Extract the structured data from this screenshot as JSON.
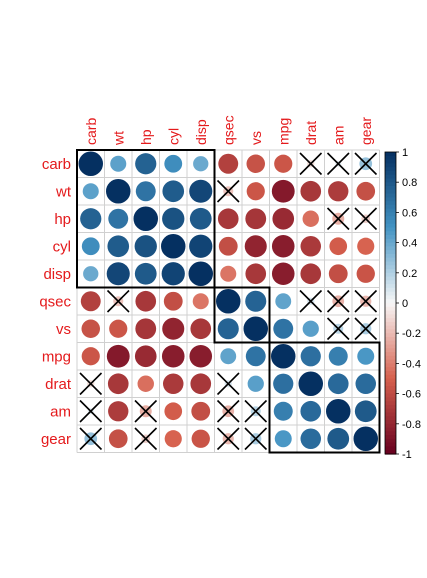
{
  "chart_data": {
    "type": "heatmap",
    "variables": [
      "carb",
      "wt",
      "hp",
      "cyl",
      "disp",
      "qsec",
      "vs",
      "mpg",
      "drat",
      "am",
      "gear"
    ],
    "matrix": [
      [
        1.0,
        0.43,
        0.75,
        0.53,
        0.39,
        -0.66,
        -0.57,
        -0.55,
        -0.09,
        0.06,
        0.27
      ],
      [
        0.43,
        1.0,
        0.66,
        0.78,
        0.89,
        -0.17,
        -0.55,
        -0.87,
        -0.71,
        -0.69,
        -0.58
      ],
      [
        0.75,
        0.66,
        1.0,
        0.83,
        0.79,
        -0.71,
        -0.72,
        -0.78,
        -0.45,
        -0.24,
        -0.13
      ],
      [
        0.53,
        0.78,
        0.83,
        1.0,
        0.9,
        -0.59,
        -0.81,
        -0.85,
        -0.7,
        -0.52,
        -0.49
      ],
      [
        0.39,
        0.89,
        0.79,
        0.9,
        1.0,
        -0.43,
        -0.71,
        -0.85,
        -0.71,
        -0.59,
        -0.56
      ],
      [
        -0.66,
        -0.17,
        -0.71,
        -0.59,
        -0.43,
        1.0,
        0.74,
        0.42,
        0.09,
        -0.23,
        -0.21
      ],
      [
        -0.57,
        -0.55,
        -0.72,
        -0.81,
        -0.71,
        0.74,
        1.0,
        0.66,
        0.44,
        0.17,
        0.21
      ],
      [
        -0.55,
        -0.87,
        -0.78,
        -0.85,
        -0.85,
        0.42,
        0.66,
        1.0,
        0.68,
        0.6,
        0.48
      ],
      [
        -0.09,
        -0.71,
        -0.45,
        -0.7,
        -0.71,
        0.09,
        0.44,
        0.68,
        1.0,
        0.71,
        0.7
      ],
      [
        0.06,
        -0.69,
        -0.24,
        -0.52,
        -0.59,
        -0.23,
        0.17,
        0.6,
        0.71,
        1.0,
        0.79
      ],
      [
        0.27,
        -0.58,
        -0.13,
        -0.49,
        -0.56,
        -0.21,
        0.21,
        0.48,
        0.7,
        0.79,
        1.0
      ]
    ],
    "insignificant": [
      [
        0,
        8
      ],
      [
        0,
        9
      ],
      [
        0,
        10
      ],
      [
        1,
        5
      ],
      [
        2,
        9
      ],
      [
        2,
        10
      ],
      [
        5,
        1
      ],
      [
        5,
        8
      ],
      [
        5,
        9
      ],
      [
        5,
        10
      ],
      [
        6,
        9
      ],
      [
        6,
        10
      ],
      [
        8,
        0
      ],
      [
        8,
        5
      ],
      [
        9,
        0
      ],
      [
        9,
        2
      ],
      [
        9,
        5
      ],
      [
        9,
        6
      ],
      [
        10,
        0
      ],
      [
        10,
        2
      ],
      [
        10,
        5
      ],
      [
        10,
        6
      ]
    ],
    "clusters": [
      [
        0,
        4
      ],
      [
        5,
        6
      ],
      [
        7,
        10
      ]
    ],
    "colorbar_ticks": [
      "1",
      "0.8",
      "0.6",
      "0.4",
      "0.2",
      "0",
      "-0.2",
      "-0.4",
      "-0.6",
      "-0.8",
      "-1"
    ],
    "range": [
      -1,
      1
    ],
    "colors": {
      "strong_negative": "#67001f",
      "negative": "#d6604d",
      "neutral": "#f7f7f7",
      "positive": "#4393c3",
      "strong_positive": "#053061",
      "label": "#e41a1c",
      "grid": "#d0d0d0",
      "cluster_border": "#000000"
    }
  }
}
